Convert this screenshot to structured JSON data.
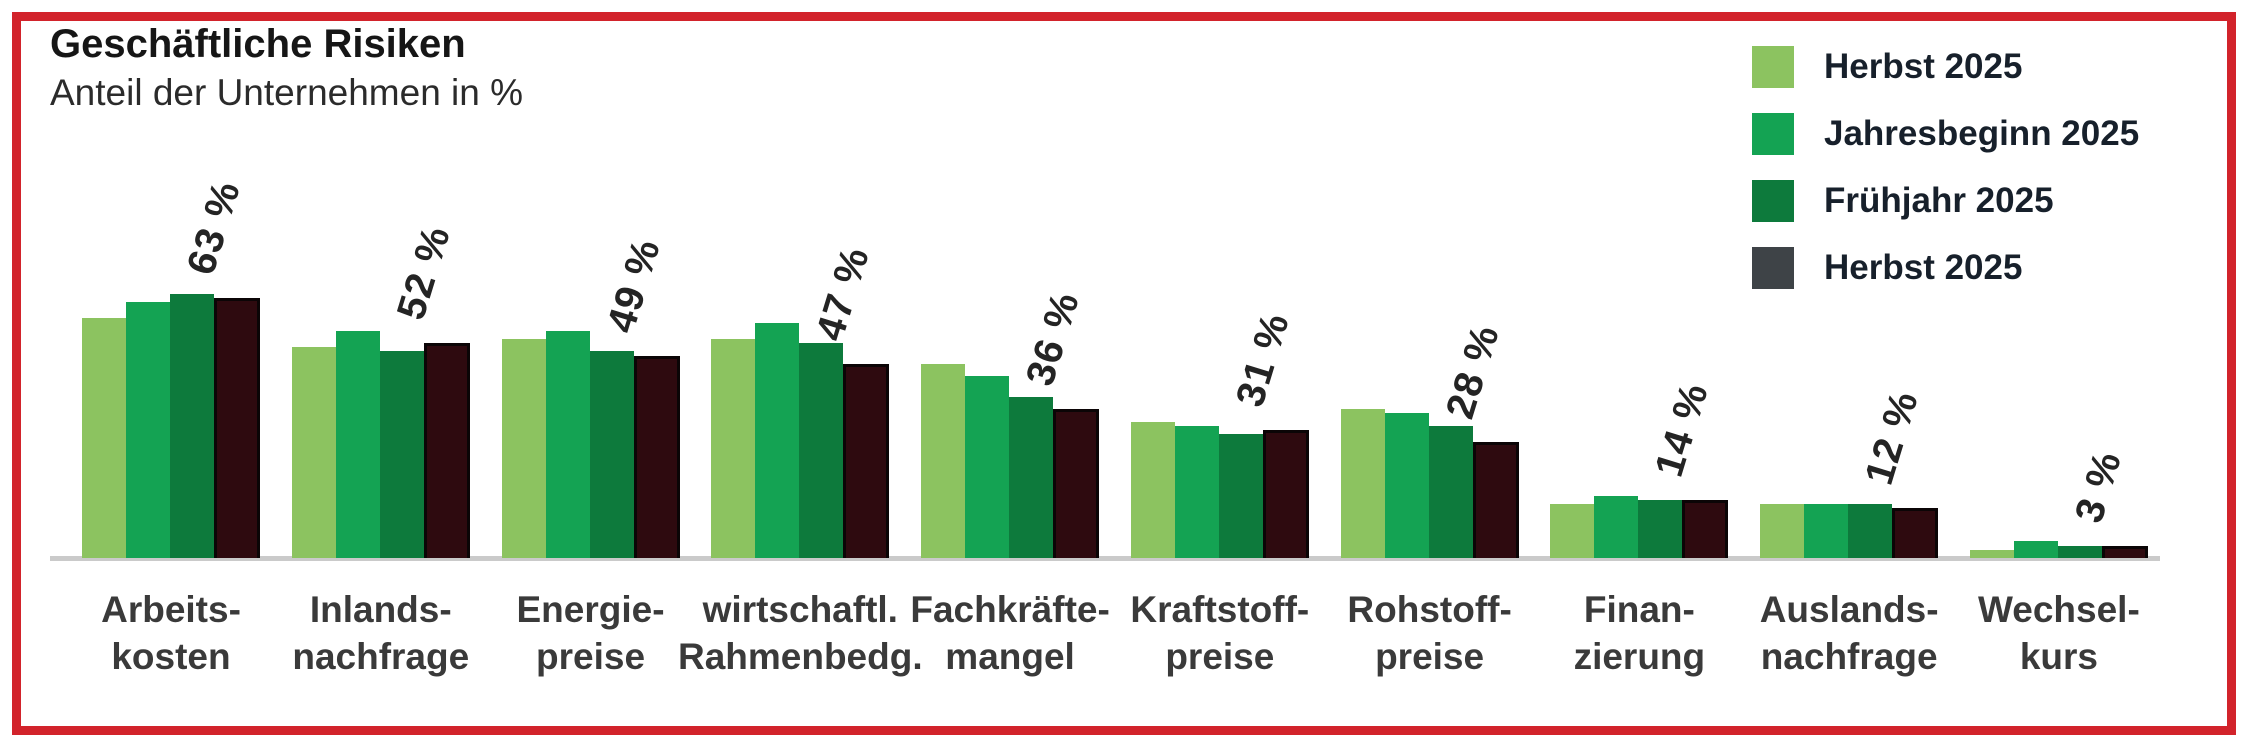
{
  "frame": {
    "border_color": "#d2232b"
  },
  "header": {
    "title": "Geschäftliche Risiken",
    "subtitle": "Anteil der Unternehmen in %"
  },
  "legend": {
    "position": "top-right",
    "items": [
      {
        "label": "Herbst 2025",
        "color": "#8cc360"
      },
      {
        "label": "Jahresbeginn 2025",
        "color": "#14a353"
      },
      {
        "label": "Frühjahr 2025",
        "color": "#0d7a3c"
      },
      {
        "label": "Herbst 2025",
        "color": "#3e4347"
      }
    ]
  },
  "chart_data": {
    "type": "bar",
    "title": "Geschäftliche Risiken",
    "subtitle": "Anteil der Unternehmen in %",
    "unit": "%",
    "grid": false,
    "ylim": [
      0,
      70
    ],
    "axis_color": "#cacaca",
    "legend_position": "top-right",
    "categories": [
      "Arbeits-\nkosten",
      "Inlands-\nnachfrage",
      "Energie-\npreise",
      "wirtschaftl.\nRahmenbedg.",
      "Fachkräfte-\nmangel",
      "Kraftstoff-\npreise",
      "Rohstoff-\npreise",
      "Finan-\nzierung",
      "Auslands-\nnachfrage",
      "Wechsel-\nkurs"
    ],
    "series": [
      {
        "name": "Herbst 2025",
        "color": "#8cc360",
        "values": [
          58,
          51,
          53,
          53,
          47,
          33,
          36,
          13,
          13,
          2
        ]
      },
      {
        "name": "Jahresbeginn 2025",
        "color": "#14a353",
        "values": [
          62,
          55,
          55,
          57,
          44,
          32,
          35,
          15,
          13,
          4
        ]
      },
      {
        "name": "Frühjahr 2025",
        "color": "#0d7a3c",
        "values": [
          64,
          50,
          50,
          52,
          39,
          30,
          32,
          14,
          13,
          3
        ]
      },
      {
        "name": "Herbst 2025",
        "color": "#2e0a0f",
        "bar_border": "#0b0506",
        "values": [
          63,
          52,
          49,
          47,
          36,
          31,
          28,
          14,
          12,
          3
        ]
      }
    ],
    "value_labels": [
      "63 %",
      "52 %",
      "49 %",
      "47 %",
      "36 %",
      "31 %",
      "28 %",
      "14 %",
      "12 %",
      "3 %"
    ],
    "value_labels_refer_to_series": "Herbst 2025 (dark)"
  }
}
